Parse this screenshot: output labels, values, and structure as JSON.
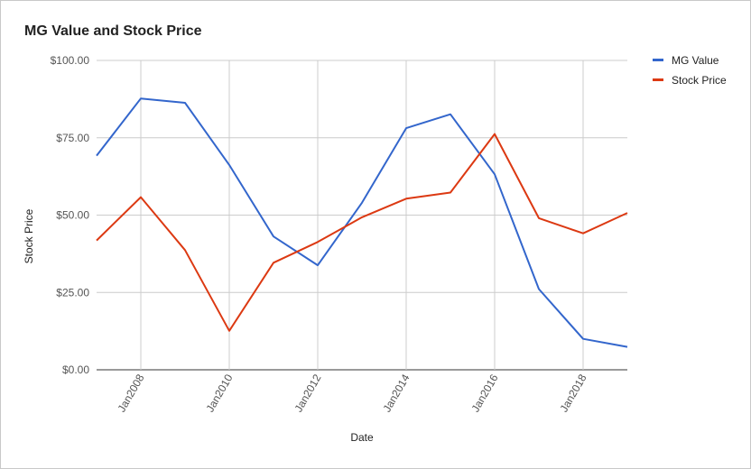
{
  "chart_data": {
    "type": "line",
    "title": "MG Value and Stock Price",
    "xlabel": "Date",
    "ylabel": "Stock Price",
    "x": [
      2007,
      2008,
      2009,
      2010,
      2011,
      2012,
      2013,
      2014,
      2015,
      2016,
      2017,
      2018,
      2019
    ],
    "x_tick_labels": [
      "Jan2008",
      "Jan2010",
      "Jan2012",
      "Jan2014",
      "Jan2016",
      "Jan2018"
    ],
    "x_tick_years": [
      2008,
      2010,
      2012,
      2014,
      2016,
      2018
    ],
    "y_tick_labels": [
      "$0.00",
      "$25.00",
      "$50.00",
      "$75.00",
      "$100.00"
    ],
    "y_tick_values": [
      0,
      25,
      50,
      75,
      100
    ],
    "ylim": [
      0,
      100
    ],
    "grid": true,
    "legend_position": "right",
    "series": [
      {
        "name": "MG Value",
        "color": "#3366cc",
        "values": [
          69.2,
          87.7,
          86.3,
          66.2,
          43.1,
          33.8,
          54.0,
          78.1,
          82.6,
          63.2,
          26.1,
          10.0,
          7.4
        ]
      },
      {
        "name": "Stock Price",
        "color": "#dc3912",
        "values": [
          41.8,
          55.8,
          38.7,
          12.6,
          34.6,
          41.3,
          49.3,
          55.3,
          57.3,
          76.2,
          49.0,
          44.1,
          50.7
        ]
      }
    ]
  }
}
